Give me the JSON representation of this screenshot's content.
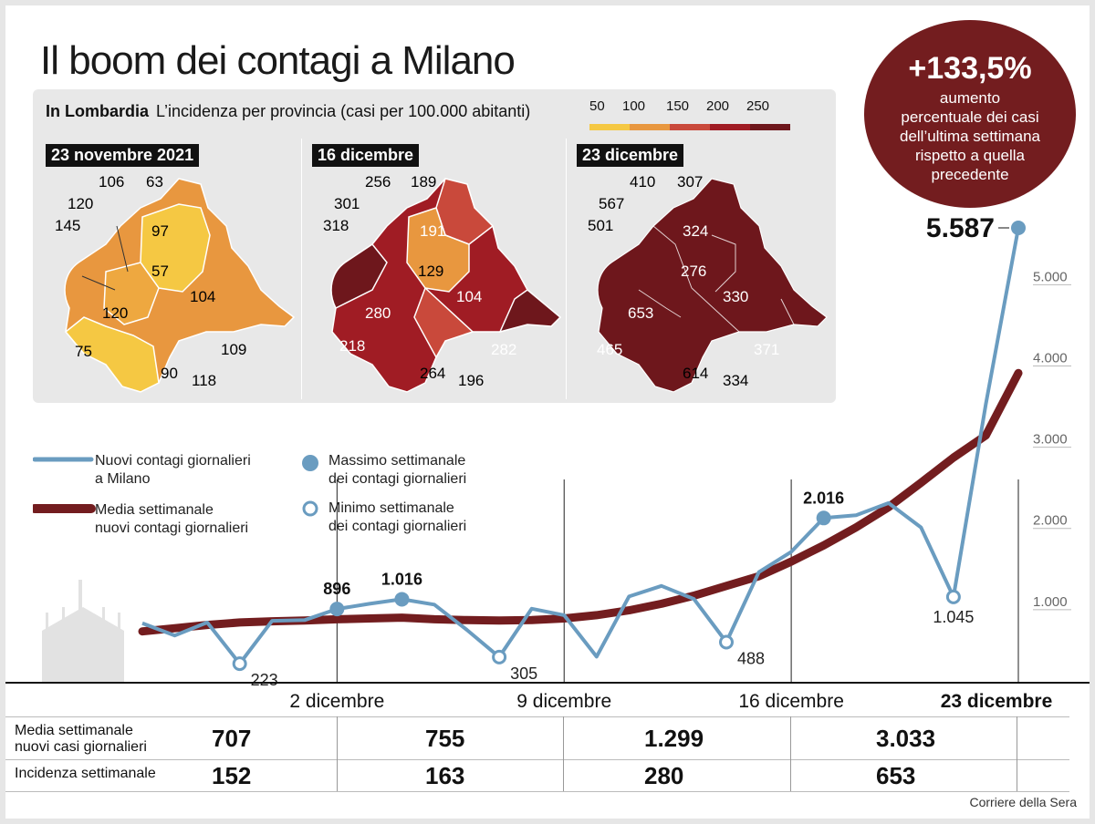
{
  "title": "Il boom dei contagi a Milano",
  "map_panel": {
    "heading_bold": "In Lombardia",
    "heading": "L’incidenza per provincia (casi per 100.000 abitanti)",
    "legend": [
      {
        "label": "50",
        "color": "#f5c843"
      },
      {
        "label": "100",
        "color": "#e8973f"
      },
      {
        "label": "150",
        "color": "#c9493b"
      },
      {
        "label": "200",
        "color": "#a01c24"
      },
      {
        "label": "250",
        "color": "#6e171c"
      }
    ],
    "maps": [
      {
        "date": "23 novembre 2021",
        "values": [
          "106",
          "63",
          "120",
          "145",
          "97",
          "57",
          "104",
          "120",
          "75",
          "109",
          "90",
          "118"
        ]
      },
      {
        "date": "16 dicembre",
        "values": [
          "256",
          "189",
          "301",
          "318",
          "191",
          "129",
          "104",
          "280",
          "218",
          "282",
          "264",
          "196"
        ]
      },
      {
        "date": "23 dicembre",
        "values": [
          "410",
          "307",
          "567",
          "501",
          "324",
          "276",
          "330",
          "653",
          "465",
          "371",
          "614",
          "334"
        ]
      }
    ]
  },
  "callout": {
    "value": "+133,5%",
    "text": [
      "aumento",
      "percentuale dei casi",
      "dell’ultima settimana",
      "rispetto a quella",
      "precedente"
    ]
  },
  "legend2": {
    "daily": "Nuovi contagi giornalieri\na Milano",
    "avg": "Media settimanale\nnuovi contagi giornalieri",
    "max": "Massimo settimanale\ndei contagi giornalieri",
    "min": "Minimo settimanale\ndei contagi giornalieri"
  },
  "chart_data": {
    "type": "line",
    "series": [
      {
        "name": "Nuovi contagi giornalieri a Milano",
        "color": "#6a9cc0",
        "values": [
          720,
          570,
          730,
          223,
          750,
          760,
          896,
          960,
          1016,
          950,
          640,
          305,
          900,
          820,
          310,
          1050,
          1180,
          1020,
          488,
          1350,
          1600,
          2016,
          2050,
          2200,
          1900,
          1045,
          3420,
          5587
        ]
      },
      {
        "name": "Media settimanale nuovi contagi giornalieri",
        "color": "#731d1f",
        "values": [
          620,
          660,
          700,
          730,
          745,
          755,
          770,
          780,
          790,
          770,
          760,
          755,
          760,
          780,
          820,
          880,
          960,
          1060,
          1180,
          1299,
          1480,
          1680,
          1900,
          2150,
          2450,
          2760,
          3033,
          3800
        ]
      }
    ],
    "x_labels": [
      "2 dicembre",
      "9 dicembre",
      "16 dicembre",
      "23 dicembre"
    ],
    "y_ticks": [
      "1.000",
      "2.000",
      "3.000",
      "4.000",
      "5.000"
    ],
    "y_range": [
      0,
      5800
    ],
    "annotations": [
      {
        "index": 3,
        "label": "223",
        "kind": "min"
      },
      {
        "index": 6,
        "label": "896",
        "kind": "max"
      },
      {
        "index": 8,
        "label": "1.016",
        "kind": "max"
      },
      {
        "index": 11,
        "label": "305",
        "kind": "min"
      },
      {
        "index": 18,
        "label": "488",
        "kind": "min"
      },
      {
        "index": 21,
        "label": "2.016",
        "kind": "max"
      },
      {
        "index": 25,
        "label": "1.045",
        "kind": "min"
      },
      {
        "index": 27,
        "label": "5.587",
        "kind": "max"
      }
    ]
  },
  "table": {
    "rows": [
      {
        "label": "Media settimanale\nnuovi casi giornalieri",
        "values": [
          "707",
          "755",
          "1.299",
          "3.033"
        ]
      },
      {
        "label": "Incidenza settimanale",
        "values": [
          "152",
          "163",
          "280",
          "653"
        ]
      }
    ]
  },
  "source": "Corriere della Sera"
}
